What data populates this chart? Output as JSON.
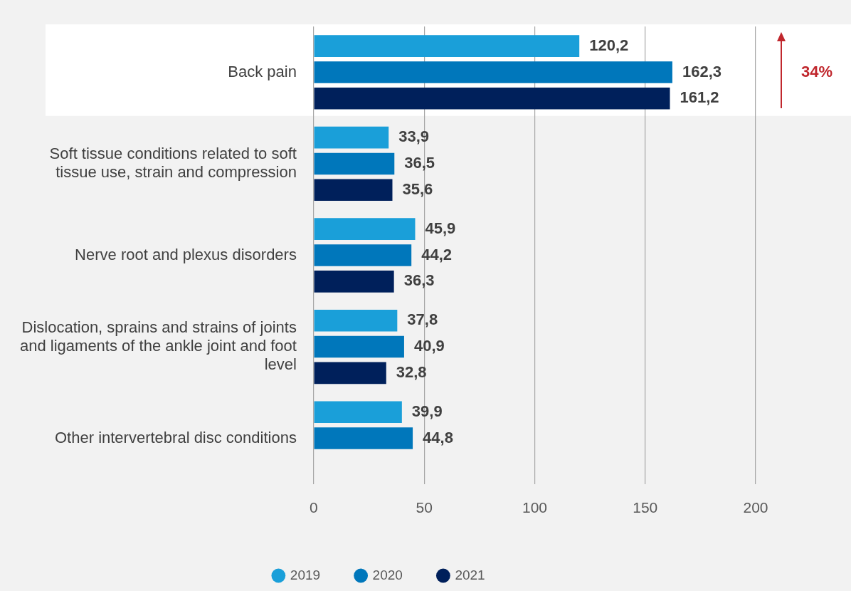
{
  "chart_data": {
    "type": "bar",
    "orientation": "horizontal",
    "categories": [
      "Back pain",
      "Soft tissue conditions related to soft tissue use, strain and compression",
      "Nerve root and plexus disorders",
      "Dislocation, sprains and strains of joints and ligaments of the ankle joint and foot level",
      "Other intervertebral disc conditions"
    ],
    "series": [
      {
        "name": "2019",
        "color": "#1a9fd9",
        "values": [
          120.2,
          33.9,
          45.9,
          37.8,
          39.9
        ],
        "value_labels": [
          "120,2",
          "33,9",
          "45,9",
          "37,8",
          "39,9"
        ]
      },
      {
        "name": "2020",
        "color": "#0077bb",
        "values": [
          162.3,
          36.5,
          44.2,
          40.9,
          44.8
        ],
        "value_labels": [
          "162,3",
          "36,5",
          "44,2",
          "40,9",
          "44,8"
        ]
      },
      {
        "name": "2021",
        "color": "#00205b",
        "values": [
          161.2,
          35.6,
          36.3,
          32.8,
          null
        ],
        "value_labels": [
          "161,2",
          "35,6",
          "36,3",
          "32,8",
          null
        ]
      }
    ],
    "xlim": [
      0,
      200
    ],
    "xticks": [
      0,
      50,
      100,
      150,
      200
    ],
    "grid": "x",
    "legend": "bottom",
    "bands": [
      {
        "axis": "y",
        "from": "Back pain",
        "to": "Back pain",
        "color": "#ffffff"
      }
    ],
    "annotations": [
      "34%"
    ]
  }
}
